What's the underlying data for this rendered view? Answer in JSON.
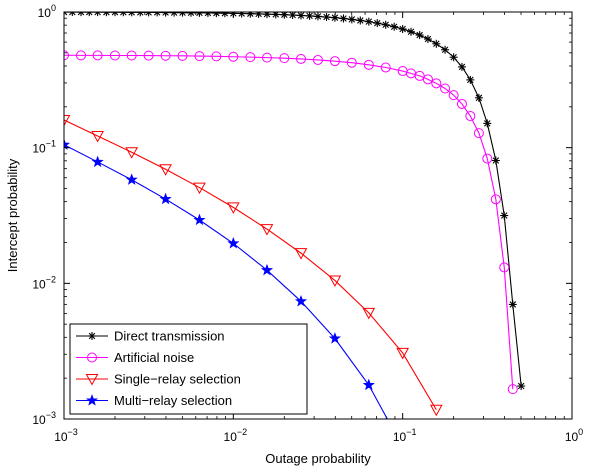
{
  "chart_data": {
    "type": "line",
    "xlabel": "Outage probability",
    "ylabel": "Intercept probability",
    "xscale": "log",
    "yscale": "log",
    "xlim": [
      0.001,
      1
    ],
    "ylim": [
      0.001,
      1
    ],
    "x_ticks": [
      {
        "value": 0.001,
        "base": "10",
        "exp": "−3"
      },
      {
        "value": 0.01,
        "base": "10",
        "exp": "−2"
      },
      {
        "value": 0.1,
        "base": "10",
        "exp": "−1"
      },
      {
        "value": 1,
        "base": "10",
        "exp": "0"
      }
    ],
    "y_ticks": [
      {
        "value": 0.001,
        "base": "10",
        "exp": "−3"
      },
      {
        "value": 0.01,
        "base": "10",
        "exp": "−2"
      },
      {
        "value": 0.1,
        "base": "10",
        "exp": "−1"
      },
      {
        "value": 1,
        "base": "10",
        "exp": "0"
      }
    ],
    "grid": false,
    "legend_position": "bottom-left",
    "series": [
      {
        "name": "Direct transmission",
        "color": "#000000",
        "marker": "asterisk",
        "x": [
          0.001,
          0.00112,
          0.00126,
          0.00141,
          0.00158,
          0.00178,
          0.002,
          0.00224,
          0.00251,
          0.00282,
          0.00316,
          0.00355,
          0.00398,
          0.00447,
          0.00501,
          0.00562,
          0.00631,
          0.00708,
          0.00794,
          0.00891,
          0.01,
          0.0112,
          0.0126,
          0.0141,
          0.0158,
          0.0178,
          0.02,
          0.0224,
          0.0251,
          0.0282,
          0.0316,
          0.0355,
          0.0398,
          0.0447,
          0.0501,
          0.0562,
          0.0631,
          0.0708,
          0.0794,
          0.0891,
          0.1,
          0.112,
          0.126,
          0.141,
          0.158,
          0.178,
          0.2,
          0.224,
          0.251,
          0.282,
          0.316,
          0.355,
          0.398,
          0.447,
          0.501
        ],
        "y": [
          0.999,
          0.999,
          0.998,
          0.998,
          0.998,
          0.997,
          0.997,
          0.996,
          0.995,
          0.994,
          0.994,
          0.993,
          0.991,
          0.99,
          0.989,
          0.987,
          0.986,
          0.984,
          0.982,
          0.98,
          0.977,
          0.975,
          0.972,
          0.968,
          0.964,
          0.96,
          0.955,
          0.95,
          0.943,
          0.936,
          0.928,
          0.918,
          0.908,
          0.896,
          0.882,
          0.866,
          0.849,
          0.828,
          0.805,
          0.779,
          0.749,
          0.715,
          0.676,
          0.632,
          0.583,
          0.527,
          0.464,
          0.394,
          0.316,
          0.233,
          0.151,
          0.0804,
          0.0316,
          0.00699,
          0.00175
        ]
      },
      {
        "name": "Artificial noise",
        "color": "#ff00ff",
        "marker": "circle",
        "x": [
          0.001,
          0.00126,
          0.00158,
          0.002,
          0.00251,
          0.00316,
          0.00398,
          0.00501,
          0.00631,
          0.00794,
          0.01,
          0.0126,
          0.0158,
          0.02,
          0.0251,
          0.0316,
          0.0398,
          0.0501,
          0.0631,
          0.0794,
          0.1,
          0.112,
          0.126,
          0.141,
          0.158,
          0.178,
          0.2,
          0.224,
          0.251,
          0.282,
          0.316,
          0.355,
          0.398,
          0.447
        ],
        "y": [
          0.48,
          0.479,
          0.479,
          0.478,
          0.478,
          0.477,
          0.476,
          0.475,
          0.473,
          0.471,
          0.468,
          0.465,
          0.461,
          0.457,
          0.451,
          0.443,
          0.434,
          0.423,
          0.408,
          0.39,
          0.367,
          0.353,
          0.338,
          0.319,
          0.298,
          0.273,
          0.244,
          0.21,
          0.171,
          0.128,
          0.0831,
          0.0416,
          0.0131,
          0.00166
        ]
      },
      {
        "name": "Single−relay selection",
        "color": "#ff0000",
        "marker": "triangle-down",
        "x": [
          0.001,
          0.00158,
          0.00251,
          0.00398,
          0.00631,
          0.01,
          0.0158,
          0.0251,
          0.0398,
          0.0631,
          0.1,
          0.158
        ],
        "y": [
          0.16,
          0.122,
          0.0926,
          0.0693,
          0.0508,
          0.0363,
          0.0251,
          0.0167,
          0.0105,
          0.00606,
          0.00307,
          0.00117
        ]
      },
      {
        "name": "Multi−relay selection",
        "color": "#0000ff",
        "marker": "star",
        "x": [
          0.001,
          0.00158,
          0.00251,
          0.00398,
          0.00631,
          0.01,
          0.0158,
          0.0251,
          0.0398,
          0.0631,
          0.1
        ],
        "y": [
          0.105,
          0.0785,
          0.058,
          0.0418,
          0.0293,
          0.0197,
          0.0125,
          0.00737,
          0.00392,
          0.00178,
          0.00062
        ]
      }
    ]
  }
}
